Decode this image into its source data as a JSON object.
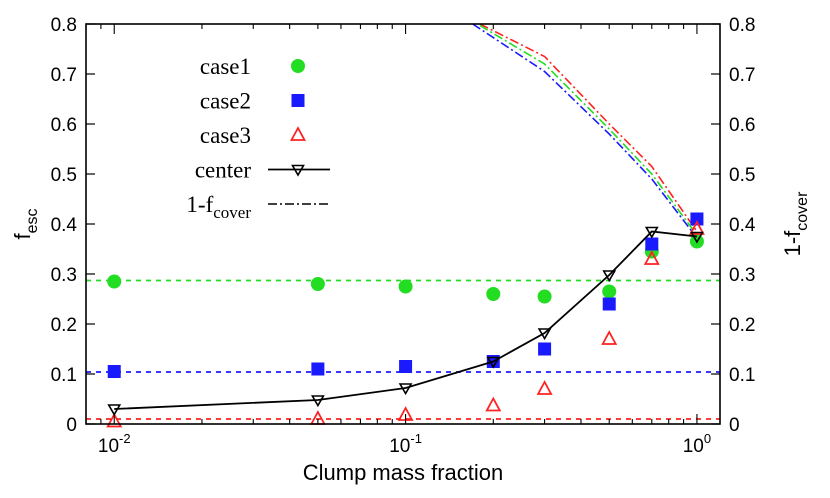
{
  "chart_data": {
    "type": "scatter",
    "xscale": "log",
    "xlim": [
      0.008,
      1.2
    ],
    "ylim": [
      0,
      0.8
    ],
    "y2lim": [
      0,
      0.8
    ],
    "xlabel": "Clump mass fraction",
    "ylabel": {
      "main": "f",
      "sub": "esc"
    },
    "y2label": {
      "main": "1-f",
      "sub": "cover"
    },
    "xticks": [
      {
        "value": 0.01,
        "base": "10",
        "exp": "-2"
      },
      {
        "value": 0.1,
        "base": "10",
        "exp": "-1"
      },
      {
        "value": 1,
        "base": "10",
        "exp": "0"
      }
    ],
    "yticks": [
      "0",
      "0.1",
      "0.2",
      "0.3",
      "0.4",
      "0.5",
      "0.6",
      "0.7",
      "0.8"
    ],
    "y2ticks": [
      "0",
      "0.1",
      "0.2",
      "0.3",
      "0.4",
      "0.5",
      "0.6",
      "0.7",
      "0.8"
    ],
    "legend_position": "upper-left",
    "legend": [
      {
        "label": "case1",
        "marker": "circle",
        "color": "#22dd22"
      },
      {
        "label": "case2",
        "marker": "square",
        "color": "#1a1aff"
      },
      {
        "label": "case3",
        "marker": "triangle-open",
        "color": "#ff2222"
      },
      {
        "label": "center",
        "marker": "line-invtriangle",
        "color": "#000000"
      },
      {
        "label": "1-f",
        "sub": "cover",
        "marker": "dashdot",
        "color": "#000000"
      }
    ],
    "series": [
      {
        "name": "case1",
        "marker": "circle",
        "color": "#22dd22",
        "x": [
          0.01,
          0.05,
          0.1,
          0.2,
          0.3,
          0.5,
          0.7,
          1.0
        ],
        "y": [
          0.285,
          0.28,
          0.275,
          0.26,
          0.255,
          0.265,
          0.345,
          0.365
        ]
      },
      {
        "name": "case2",
        "marker": "square",
        "color": "#1a1aff",
        "x": [
          0.01,
          0.05,
          0.1,
          0.2,
          0.3,
          0.5,
          0.7,
          1.0
        ],
        "y": [
          0.105,
          0.11,
          0.115,
          0.125,
          0.15,
          0.24,
          0.36,
          0.41
        ]
      },
      {
        "name": "case3",
        "marker": "triangle-open",
        "color": "#ff2222",
        "x": [
          0.01,
          0.05,
          0.1,
          0.2,
          0.3,
          0.5,
          0.7,
          1.0
        ],
        "y": [
          0.005,
          0.01,
          0.018,
          0.037,
          0.07,
          0.17,
          0.33,
          0.39
        ]
      },
      {
        "name": "center",
        "marker": "invtriangle-open",
        "line": "solid",
        "color": "#000000",
        "x": [
          0.01,
          0.05,
          0.1,
          0.2,
          0.3,
          0.5,
          0.7,
          1.0
        ],
        "y": [
          0.03,
          0.048,
          0.072,
          0.125,
          0.182,
          0.298,
          0.385,
          0.375
        ]
      }
    ],
    "reference_lines": [
      {
        "color": "#22dd22",
        "y": 0.287
      },
      {
        "color": "#1a1aff",
        "y": 0.104
      },
      {
        "color": "#ff2222",
        "y": 0.01
      }
    ],
    "cover_curves": [
      {
        "color": "#ff2222",
        "x": [
          0.18,
          0.3,
          0.5,
          0.7,
          1.0
        ],
        "y": [
          0.8,
          0.735,
          0.6,
          0.515,
          0.385
        ]
      },
      {
        "color": "#22dd22",
        "x": [
          0.18,
          0.3,
          0.5,
          0.7,
          1.0
        ],
        "y": [
          0.797,
          0.72,
          0.59,
          0.5,
          0.378
        ]
      },
      {
        "color": "#1a1aff",
        "x": [
          0.17,
          0.3,
          0.5,
          0.7,
          1.0
        ],
        "y": [
          0.8,
          0.705,
          0.58,
          0.49,
          0.372
        ]
      }
    ]
  }
}
